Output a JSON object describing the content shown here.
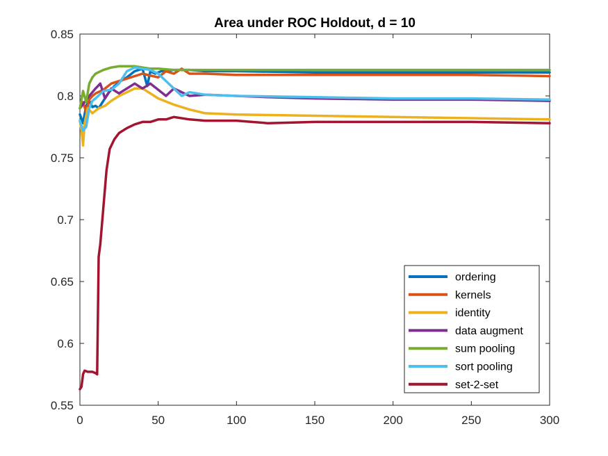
{
  "chart_data": {
    "type": "line",
    "title": "Area under ROC Holdout, d = 10",
    "xlabel": "",
    "ylabel": "",
    "xlim": [
      0,
      300
    ],
    "ylim": [
      0.55,
      0.85
    ],
    "xticks": [
      "0",
      "50",
      "100",
      "150",
      "200",
      "250",
      "300"
    ],
    "yticks": [
      "0.55",
      "0.6",
      "0.65",
      "0.7",
      "0.75",
      "0.8",
      "0.85"
    ],
    "grid": false,
    "legend_position": "bottom-right",
    "series": [
      {
        "name": "ordering",
        "color": "#0072BD",
        "x": [
          0,
          2,
          4,
          6,
          8,
          10,
          12,
          15,
          18,
          22,
          26,
          30,
          35,
          40,
          43,
          45,
          48,
          52,
          60,
          70,
          80,
          100,
          150,
          200,
          250,
          300
        ],
        "y": [
          0.785,
          0.778,
          0.792,
          0.796,
          0.791,
          0.792,
          0.79,
          0.796,
          0.802,
          0.808,
          0.812,
          0.815,
          0.82,
          0.822,
          0.808,
          0.82,
          0.818,
          0.82,
          0.821,
          0.821,
          0.82,
          0.82,
          0.819,
          0.819,
          0.819,
          0.819
        ]
      },
      {
        "name": "kernels",
        "color": "#D95319",
        "x": [
          0,
          2,
          4,
          6,
          8,
          10,
          15,
          20,
          25,
          30,
          40,
          50,
          55,
          60,
          65,
          70,
          80,
          100,
          150,
          200,
          250,
          300
        ],
        "y": [
          0.79,
          0.795,
          0.787,
          0.797,
          0.8,
          0.802,
          0.805,
          0.81,
          0.812,
          0.814,
          0.818,
          0.815,
          0.82,
          0.818,
          0.822,
          0.818,
          0.818,
          0.817,
          0.817,
          0.817,
          0.817,
          0.816
        ]
      },
      {
        "name": "identity",
        "color": "#EDB120",
        "x": [
          0,
          1,
          2,
          3,
          5,
          8,
          12,
          16,
          20,
          25,
          30,
          35,
          40,
          45,
          50,
          60,
          70,
          80,
          100,
          150,
          200,
          250,
          300
        ],
        "y": [
          0.78,
          0.772,
          0.76,
          0.778,
          0.79,
          0.786,
          0.79,
          0.792,
          0.796,
          0.8,
          0.803,
          0.806,
          0.806,
          0.802,
          0.798,
          0.793,
          0.789,
          0.786,
          0.785,
          0.784,
          0.783,
          0.782,
          0.781
        ]
      },
      {
        "name": "data augment",
        "color": "#7E2F8E",
        "x": [
          0,
          3,
          6,
          10,
          13,
          16,
          20,
          25,
          30,
          35,
          40,
          45,
          50,
          55,
          60,
          70,
          80,
          100,
          120,
          150,
          200,
          250,
          300
        ],
        "y": [
          0.79,
          0.795,
          0.8,
          0.806,
          0.81,
          0.798,
          0.806,
          0.802,
          0.806,
          0.81,
          0.806,
          0.81,
          0.805,
          0.8,
          0.806,
          0.8,
          0.801,
          0.8,
          0.799,
          0.798,
          0.797,
          0.797,
          0.796
        ]
      },
      {
        "name": "sum pooling",
        "color": "#77AC30",
        "x": [
          0,
          2,
          4,
          6,
          8,
          10,
          15,
          20,
          25,
          30,
          35,
          40,
          45,
          50,
          60,
          80,
          100,
          150,
          200,
          250,
          300
        ],
        "y": [
          0.79,
          0.804,
          0.795,
          0.81,
          0.815,
          0.818,
          0.821,
          0.823,
          0.824,
          0.824,
          0.824,
          0.823,
          0.822,
          0.822,
          0.821,
          0.821,
          0.821,
          0.821,
          0.821,
          0.821,
          0.821
        ]
      },
      {
        "name": "sort pooling",
        "color": "#4DBEEE",
        "x": [
          0,
          2,
          4,
          6,
          8,
          10,
          15,
          20,
          25,
          30,
          35,
          40,
          45,
          50,
          55,
          60,
          65,
          70,
          80,
          100,
          150,
          200,
          250,
          300
        ],
        "y": [
          0.78,
          0.772,
          0.775,
          0.79,
          0.796,
          0.798,
          0.804,
          0.805,
          0.81,
          0.82,
          0.823,
          0.822,
          0.821,
          0.818,
          0.812,
          0.806,
          0.8,
          0.803,
          0.801,
          0.8,
          0.799,
          0.798,
          0.798,
          0.797
        ]
      },
      {
        "name": "set-2-set",
        "color": "#A2142F",
        "x": [
          0,
          1,
          2,
          3,
          5,
          8,
          10,
          11,
          12,
          13,
          15,
          17,
          19,
          22,
          25,
          30,
          35,
          40,
          45,
          50,
          55,
          60,
          70,
          80,
          100,
          120,
          150,
          200,
          250,
          300
        ],
        "y": [
          0.563,
          0.565,
          0.575,
          0.578,
          0.577,
          0.577,
          0.576,
          0.575,
          0.67,
          0.68,
          0.71,
          0.74,
          0.757,
          0.765,
          0.77,
          0.774,
          0.777,
          0.779,
          0.779,
          0.781,
          0.781,
          0.783,
          0.781,
          0.78,
          0.78,
          0.778,
          0.779,
          0.779,
          0.779,
          0.778
        ]
      }
    ]
  }
}
